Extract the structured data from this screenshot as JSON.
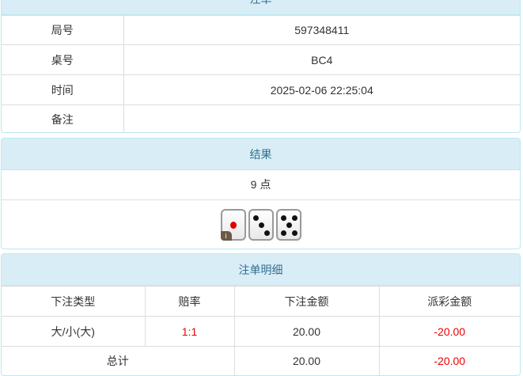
{
  "order": {
    "title": "注单",
    "rows": [
      {
        "label": "局号",
        "value": "597348411"
      },
      {
        "label": "桌号",
        "value": "BC4"
      },
      {
        "label": "时间",
        "value": "2025-02-06 22:25:04"
      },
      {
        "label": "备注",
        "value": ""
      }
    ]
  },
  "result": {
    "title": "结果",
    "points": "9 点",
    "dice": [
      1,
      3,
      5
    ],
    "dice_icon": "dice-icon",
    "info_badge": "i"
  },
  "detail": {
    "title": "注单明细",
    "headers": [
      "下注类型",
      "赔率",
      "下注金额",
      "派彩金额"
    ],
    "rows": [
      {
        "type": "大/小(大)",
        "odds": "1:1",
        "bet": "20.00",
        "payout": "-20.00"
      }
    ],
    "total": {
      "label": "总计",
      "bet": "20.00",
      "payout": "-20.00"
    },
    "colors": {
      "header_bg": "#d9edf7",
      "header_text": "#31708f",
      "negative": "#e00000"
    }
  }
}
